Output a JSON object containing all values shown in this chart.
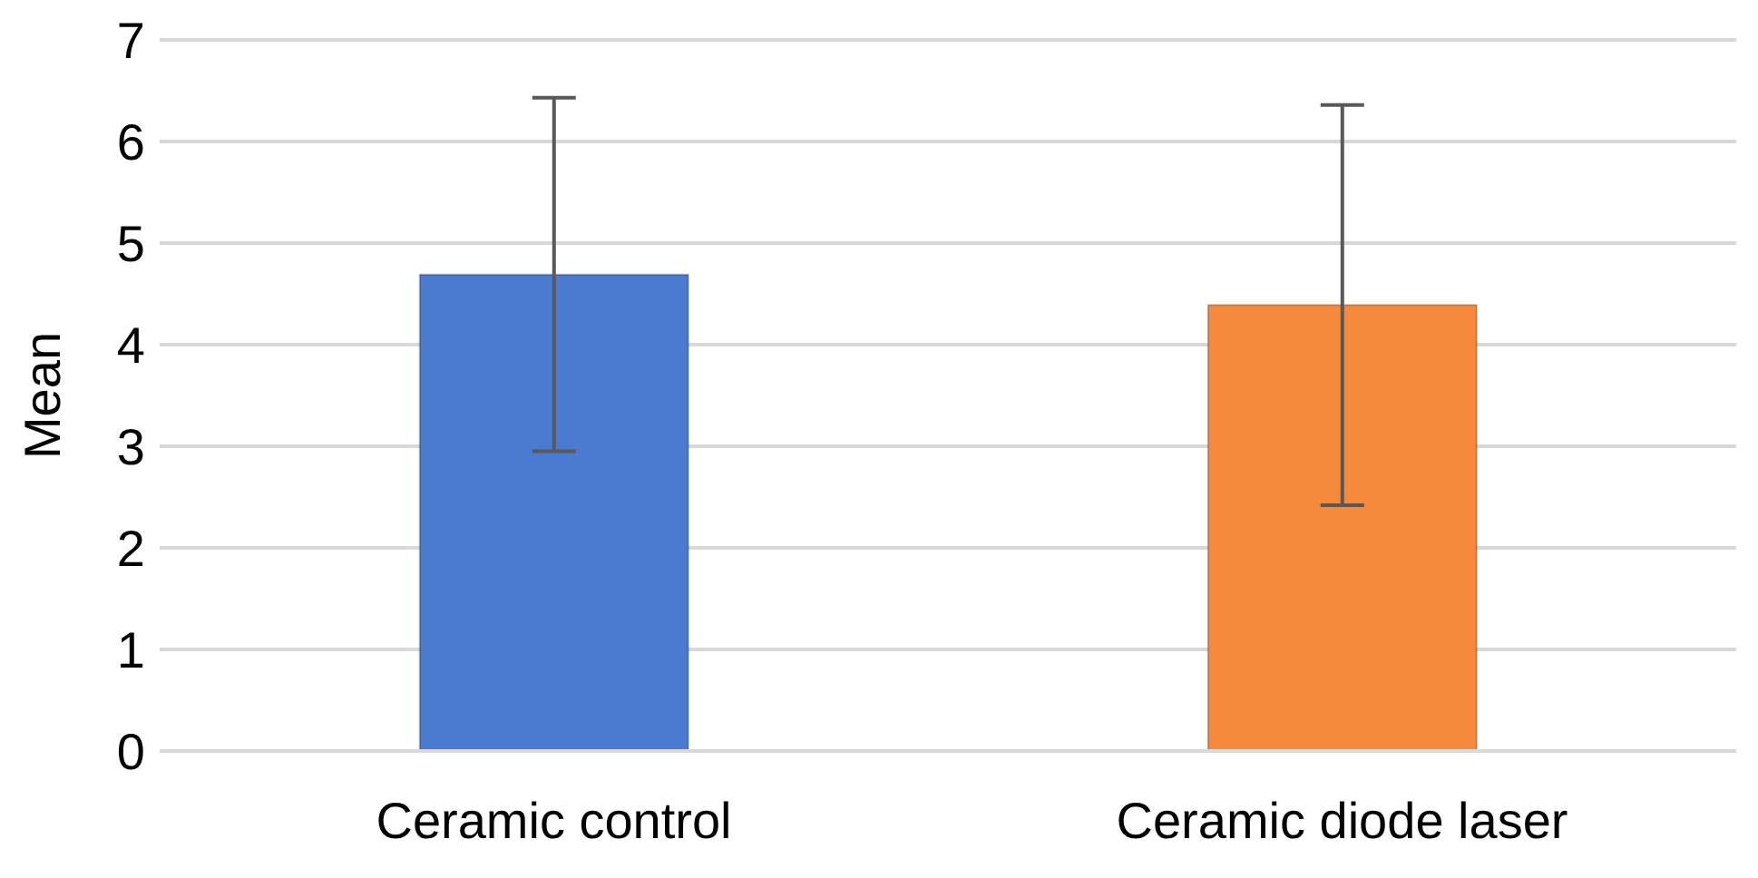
{
  "chart_data": {
    "type": "bar",
    "ylabel": "Mean",
    "categories": [
      "Ceramic control",
      "Ceramic diode laser"
    ],
    "values": [
      4.69,
      4.39
    ],
    "colors": [
      "#4a7bd0",
      "#f58a3c"
    ],
    "errors": [
      1.74,
      1.97
    ],
    "ylim": [
      0,
      7
    ],
    "yticks": [
      0,
      1,
      2,
      3,
      4,
      5,
      6,
      7
    ],
    "grid": "y",
    "legend": false
  }
}
